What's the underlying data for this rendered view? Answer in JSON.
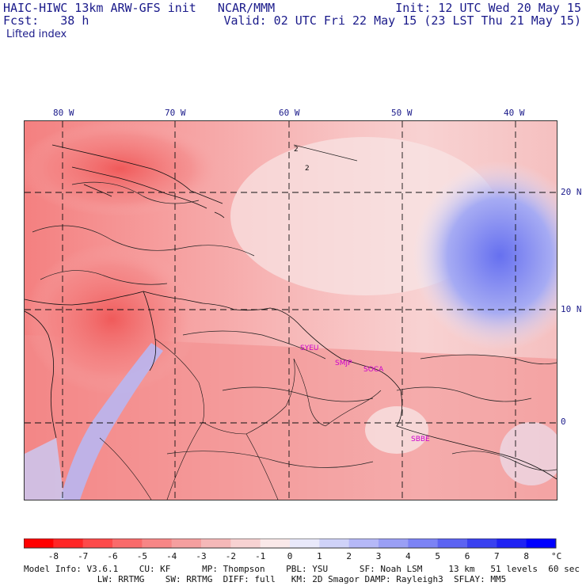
{
  "header": {
    "model_title": "HAIC-HIWC 13km ARW-GFS init   NCAR/MMM",
    "forecast_label": "Fcst:   38 h",
    "init": "Init: 12 UTC Wed 20 May 15",
    "valid": "Valid: 02 UTC Fri 22 May 15 (23 LST Thu 21 May 15)",
    "field": "Lifted index"
  },
  "axes": {
    "longitude_labels": [
      "80 W",
      "70 W",
      "60 W",
      "50 W",
      "40 W"
    ],
    "latitude_labels": [
      "20 N",
      "10 N",
      "0"
    ]
  },
  "stations": [
    "SYEU",
    "SMJP",
    "SOCA",
    "SBBE"
  ],
  "colorbar": {
    "ticks": [
      "-8",
      "-7",
      "-6",
      "-5",
      "-4",
      "-3",
      "-2",
      "-1",
      "0",
      "1",
      "2",
      "3",
      "4",
      "5",
      "6",
      "7",
      "8"
    ],
    "unit": "°C",
    "colors": [
      "#ff0000",
      "#ff2626",
      "#fd4a4a",
      "#f96a6a",
      "#f78686",
      "#f59f9f",
      "#f5b8b8",
      "#f7d2d2",
      "#fae9e9",
      "#e9e9fa",
      "#cfd2f8",
      "#b5b8f7",
      "#9a9ff5",
      "#7c83f5",
      "#5c63f2",
      "#3a41f0",
      "#1f22f3",
      "#0000ff"
    ]
  },
  "model_info": {
    "line1": "Model Info: V3.6.1    CU: KF      MP: Thompson    PBL: YSU      SF: Noah LSM     13 km   51 levels  60 sec",
    "line2": "              LW: RRTMG    SW: RRTMG  DIFF: full   KM: 2D Smagor DAMP: Rayleigh3  SFLAY: MM5"
  }
}
